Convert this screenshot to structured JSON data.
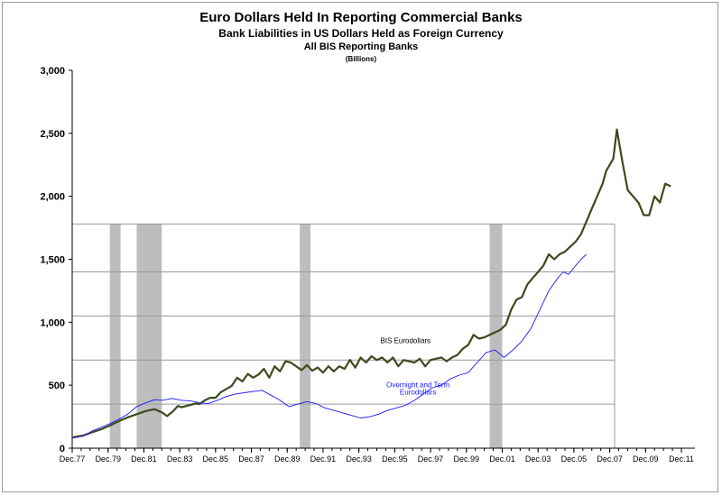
{
  "chart_data": {
    "type": "line",
    "title": "Euro Dollars Held In Reporting Commercial Banks",
    "subtitle": "Bank Liabilities in US Dollars Held as Foreign Currency",
    "subtitle2": "All BIS Reporting Banks",
    "units": "(Billions)",
    "ylim": [
      0,
      3000
    ],
    "xlim": [
      1977.9,
      2012.0
    ],
    "yticks": [
      {
        "value": 0,
        "label": "0"
      },
      {
        "value": 500,
        "label": "500"
      },
      {
        "value": 1000,
        "label": "1,000"
      },
      {
        "value": 1500,
        "label": "1,500"
      },
      {
        "value": 2000,
        "label": "2,000"
      },
      {
        "value": 2500,
        "label": "2,500"
      },
      {
        "value": 3000,
        "label": "3,000"
      }
    ],
    "xticks": [
      {
        "value": 1977.9,
        "label": "Dec.77"
      },
      {
        "value": 1979.9,
        "label": "Dec.79"
      },
      {
        "value": 1981.9,
        "label": "Dec.81"
      },
      {
        "value": 1983.9,
        "label": "Dec.83"
      },
      {
        "value": 1985.9,
        "label": "Dec.85"
      },
      {
        "value": 1987.9,
        "label": "Dec.87"
      },
      {
        "value": 1989.9,
        "label": "Dec.89"
      },
      {
        "value": 1991.9,
        "label": "Dec.91"
      },
      {
        "value": 1993.9,
        "label": "Dec.93"
      },
      {
        "value": 1995.9,
        "label": "Dec.95"
      },
      {
        "value": 1997.9,
        "label": "Dec.97"
      },
      {
        "value": 1999.9,
        "label": "Dec.99"
      },
      {
        "value": 2001.9,
        "label": "Dec.01"
      },
      {
        "value": 2003.9,
        "label": "Dec.03"
      },
      {
        "value": 2005.9,
        "label": "Dec.05"
      },
      {
        "value": 2007.9,
        "label": "Dec.07"
      },
      {
        "value": 2009.9,
        "label": "Dec.09"
      },
      {
        "value": 2011.9,
        "label": "Dec.11"
      }
    ],
    "grid_lines_y": [
      350,
      700,
      1050,
      1400
    ],
    "recession_bands": [
      {
        "start": 1980.0,
        "end": 1980.6
      },
      {
        "start": 1981.5,
        "end": 1982.9
      },
      {
        "start": 1990.6,
        "end": 1991.2
      },
      {
        "start": 2001.2,
        "end": 2001.9
      }
    ],
    "recession_band_top": 1780,
    "series": [
      {
        "name": "BIS Eurodollars",
        "color": "#3d4a1e",
        "x": [
          1977.9,
          1978.5,
          1979.0,
          1979.5,
          1980.0,
          1980.5,
          1981.0,
          1981.5,
          1982.0,
          1982.5,
          1982.9,
          1983.2,
          1983.5,
          1983.8,
          1984.0,
          1984.4,
          1984.8,
          1985.0,
          1985.3,
          1985.6,
          1985.9,
          1986.2,
          1986.5,
          1986.8,
          1987.1,
          1987.4,
          1987.7,
          1988.0,
          1988.3,
          1988.6,
          1988.9,
          1989.2,
          1989.5,
          1989.8,
          1990.1,
          1990.4,
          1990.7,
          1991.0,
          1991.3,
          1991.6,
          1991.9,
          1992.2,
          1992.5,
          1992.8,
          1993.1,
          1993.4,
          1993.7,
          1994.0,
          1994.3,
          1994.6,
          1994.9,
          1995.2,
          1995.5,
          1995.8,
          1996.1,
          1996.4,
          1996.7,
          1997.0,
          1997.3,
          1997.6,
          1997.9,
          1998.2,
          1998.5,
          1998.8,
          1999.1,
          1999.4,
          1999.7,
          2000.0,
          2000.3,
          2000.6,
          2000.9,
          2001.2,
          2001.5,
          2001.8,
          2002.1,
          2002.4,
          2002.7,
          2003.0,
          2003.3,
          2003.6,
          2003.9,
          2004.2,
          2004.5,
          2004.8,
          2005.1,
          2005.4,
          2005.7,
          2006.0,
          2006.3,
          2006.6,
          2006.9,
          2007.2,
          2007.5,
          2007.7,
          2007.9,
          2008.1,
          2008.3,
          2008.6,
          2008.9,
          2009.2,
          2009.5,
          2009.8,
          2010.1,
          2010.4,
          2010.7,
          2011.0,
          2011.3
        ],
        "values": [
          85,
          100,
          125,
          150,
          180,
          215,
          245,
          270,
          295,
          310,
          285,
          255,
          290,
          335,
          325,
          340,
          355,
          350,
          380,
          400,
          400,
          445,
          470,
          495,
          560,
          530,
          590,
          560,
          585,
          630,
          560,
          650,
          610,
          690,
          680,
          650,
          620,
          660,
          615,
          640,
          600,
          650,
          610,
          650,
          630,
          700,
          640,
          720,
          680,
          730,
          700,
          720,
          680,
          720,
          650,
          700,
          690,
          680,
          710,
          650,
          700,
          710,
          720,
          690,
          720,
          740,
          790,
          820,
          900,
          870,
          880,
          900,
          920,
          940,
          980,
          1100,
          1180,
          1200,
          1300,
          1350,
          1400,
          1450,
          1540,
          1500,
          1540,
          1560,
          1600,
          1640,
          1700,
          1800,
          1900,
          2000,
          2100,
          2200,
          2250,
          2300,
          2530,
          2280,
          2050,
          2000,
          1950,
          1850,
          1850,
          2000,
          1950,
          2100,
          2080
        ]
      },
      {
        "name": "Overnight and Term Eurodollars",
        "color": "#1a1aff",
        "x": [
          1977.9,
          1978.5,
          1979.0,
          1979.5,
          1980.0,
          1980.5,
          1981.0,
          1981.5,
          1982.0,
          1982.5,
          1982.9,
          1983.5,
          1984.0,
          1984.5,
          1985.0,
          1985.5,
          1986.0,
          1986.5,
          1987.0,
          1987.5,
          1988.0,
          1988.5,
          1989.0,
          1989.5,
          1990.0,
          1990.5,
          1991.0,
          1991.5,
          1992.0,
          1992.5,
          1993.0,
          1993.5,
          1994.0,
          1994.5,
          1995.0,
          1995.5,
          1996.0,
          1996.5,
          1997.0,
          1997.5,
          1998.0,
          1998.5,
          1999.0,
          1999.5,
          2000.0,
          2000.5,
          2001.0,
          2001.5,
          2002.0,
          2002.5,
          2003.0,
          2003.5,
          2004.0,
          2004.5,
          2005.0,
          2005.3,
          2005.6,
          2006.0,
          2006.3,
          2006.6
        ],
        "values": [
          80,
          95,
          135,
          165,
          195,
          230,
          270,
          330,
          360,
          385,
          380,
          395,
          380,
          375,
          360,
          355,
          380,
          410,
          430,
          440,
          450,
          460,
          420,
          380,
          330,
          350,
          370,
          355,
          320,
          300,
          280,
          260,
          240,
          250,
          270,
          300,
          320,
          340,
          380,
          430,
          480,
          500,
          550,
          580,
          600,
          680,
          760,
          780,
          720,
          780,
          850,
          950,
          1100,
          1250,
          1350,
          1400,
          1380,
          1450,
          1500,
          1540
        ]
      }
    ],
    "annotations": [
      {
        "text": "BIS Eurodollars",
        "x": 1996.5,
        "y": 835,
        "color": "#000000"
      },
      {
        "text": "Overnight and Term",
        "x": 1997.2,
        "y": 483,
        "color": "#1a1aff"
      },
      {
        "text": "Eurodollars",
        "x": 1997.2,
        "y": 425,
        "color": "#1a1aff"
      }
    ]
  }
}
